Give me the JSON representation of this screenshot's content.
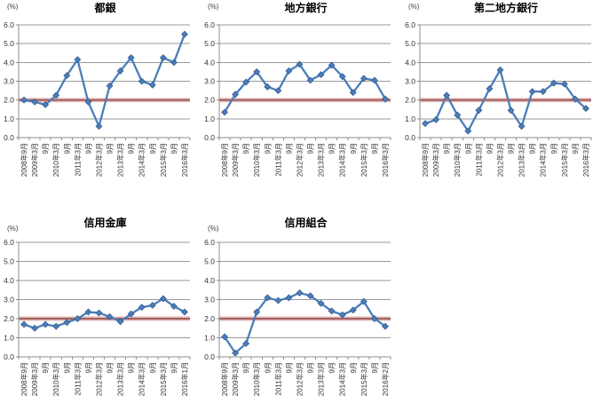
{
  "chart_data": [
    {
      "type": "line",
      "title": "都銀",
      "unit_label": "(%)",
      "xlabel": "",
      "ylabel": "(%)",
      "ylim": [
        0,
        6
      ],
      "yticks": [
        0,
        1,
        2,
        3,
        4,
        5,
        6
      ],
      "grid": true,
      "legend": "none",
      "ref_line": 2.0,
      "categories": [
        "2008年9月",
        "2009年3月",
        "9月",
        "2010年3月",
        "9月",
        "2011年3月",
        "9月",
        "2012年3月",
        "9月",
        "2013年3月",
        "9月",
        "2014年3月",
        "9月",
        "2015年3月",
        "9月",
        "2016年3月"
      ],
      "values": [
        2.0,
        1.9,
        1.75,
        2.25,
        3.3,
        4.15,
        1.9,
        0.6,
        2.75,
        3.55,
        4.25,
        3.0,
        2.8,
        4.25,
        4.0,
        5.5
      ]
    },
    {
      "type": "line",
      "title": "地方銀行",
      "unit_label": "(%)",
      "xlabel": "",
      "ylabel": "(%)",
      "ylim": [
        0,
        6
      ],
      "yticks": [
        0,
        1,
        2,
        3,
        4,
        5,
        6
      ],
      "grid": true,
      "legend": "none",
      "ref_line": 2.0,
      "categories": [
        "2008年9月",
        "2009年3月",
        "9月",
        "2010年3月",
        "9月",
        "2011年3月",
        "9月",
        "2012年3月",
        "9月",
        "2013年3月",
        "9月",
        "2014年3月",
        "9月",
        "2015年3月",
        "9月",
        "2016年3月"
      ],
      "values": [
        1.35,
        2.3,
        2.95,
        3.5,
        2.7,
        2.5,
        3.55,
        3.9,
        3.05,
        3.35,
        3.85,
        3.25,
        2.4,
        3.15,
        3.05,
        2.05
      ]
    },
    {
      "type": "line",
      "title": "第二地方銀行",
      "unit_label": "(%)",
      "xlabel": "",
      "ylabel": "(%)",
      "ylim": [
        0,
        6
      ],
      "yticks": [
        0,
        1,
        2,
        3,
        4,
        5,
        6
      ],
      "grid": true,
      "legend": "none",
      "ref_line": 2.0,
      "categories": [
        "2008年9月",
        "2009年3月",
        "9月",
        "2010年3月",
        "9月",
        "2011年3月",
        "9月",
        "2012年3月",
        "9月",
        "2013年3月",
        "9月",
        "2014年3月",
        "9月",
        "2015年3月",
        "9月",
        "2016年3月"
      ],
      "values": [
        0.75,
        0.95,
        2.25,
        1.2,
        0.35,
        1.45,
        2.6,
        3.6,
        1.45,
        0.6,
        2.45,
        2.45,
        2.9,
        2.85,
        2.05,
        1.55
      ]
    },
    {
      "type": "line",
      "title": "信用金庫",
      "unit_label": "(%)",
      "xlabel": "",
      "ylabel": "(%)",
      "ylim": [
        0,
        6
      ],
      "yticks": [
        0,
        1,
        2,
        3,
        4,
        5,
        6
      ],
      "grid": true,
      "legend": "none",
      "ref_line": 2.0,
      "categories": [
        "2008年9月",
        "2009年3月",
        "9月",
        "2010年3月",
        "9月",
        "2011年3月",
        "9月",
        "2012年3月",
        "9月",
        "2013年3月",
        "9月",
        "2014年3月",
        "9月",
        "2015年3月",
        "9月",
        "2016年1月"
      ],
      "values": [
        1.7,
        1.5,
        1.7,
        1.6,
        1.8,
        2.0,
        2.35,
        2.3,
        2.1,
        1.85,
        2.25,
        2.6,
        2.7,
        3.05,
        2.65,
        2.35
      ]
    },
    {
      "type": "line",
      "title": "信用組合",
      "unit_label": "(%)",
      "xlabel": "",
      "ylabel": "(%)",
      "ylim": [
        0,
        6
      ],
      "yticks": [
        0,
        1,
        2,
        3,
        4,
        5,
        6
      ],
      "grid": true,
      "legend": "none",
      "ref_line": 2.0,
      "categories": [
        "2008年9月",
        "2009年3月",
        "9月",
        "2010年3月",
        "9月",
        "2011年3月",
        "9月",
        "2012年3月",
        "9月",
        "2013年3月",
        "9月",
        "2014年3月",
        "9月",
        "2015年3月",
        "9月",
        "2016年2月"
      ],
      "values": [
        1.05,
        0.2,
        0.7,
        2.35,
        3.1,
        2.95,
        3.1,
        3.35,
        3.2,
        2.8,
        2.4,
        2.2,
        2.45,
        2.9,
        2.0,
        1.6
      ]
    }
  ],
  "style": {
    "line_color": "#4a7ebb",
    "marker_border_color": "#365f91",
    "ref_band_color": "#d9a7a5",
    "ref_line_color": "#8f4341",
    "grid_color": "#9a9a9a",
    "axis_color": "#8c8c8c",
    "text_color": "#333333"
  }
}
